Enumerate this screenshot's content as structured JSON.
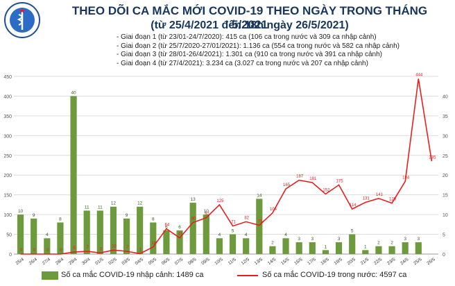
{
  "header": {
    "logo_text": "BỘ Y TẾ",
    "title": "THEO DÕI CA MẮC MỚI COVID-19 THEO NGÀY TRONG THÁNG 5/2021",
    "subtitle": "(từ 25/4/2021 đến 18h ngày 26/5/2021)",
    "phases": [
      "Giai đoạn 1 (từ 23/01-24/7/2020): 415 ca (106 ca trong nước và 309 ca nhập cảnh)",
      "Giai đoạn 2 (từ 25/7/2020-27/01/2021): 1.136 ca (554 ca trong nước và 582 ca nhập cảnh)",
      "Giai đoạn 3 (từ 28/01-26/4/2021): 1.301 ca (910 ca trong nước và 391 ca nhập cảnh)",
      "Giai đoạn 4 (từ 27/4/2021): 3.234 ca (3.027 ca trong nước và 207 ca nhập cảnh)"
    ]
  },
  "chart_data": {
    "type": "bar",
    "categories": [
      "25/4",
      "26/4",
      "27/4",
      "28/4",
      "29/4",
      "30/4",
      "01/5",
      "02/5",
      "03/5",
      "04/5",
      "05/5",
      "06/5",
      "07/5",
      "08/5",
      "09/5",
      "10/5",
      "11/5",
      "12/5",
      "13/5",
      "14/5",
      "15/5",
      "16/5",
      "17/5",
      "18/5",
      "19/5",
      "20/5",
      "21/5",
      "22/5",
      "23/5",
      "24/5",
      "25/5",
      "26/5"
    ],
    "left_axis": {
      "ylim": [
        0,
        450
      ],
      "ticks": [
        0,
        50,
        100,
        150,
        200,
        250,
        300,
        350,
        400,
        450
      ]
    },
    "right_axis": {
      "ylim": [
        0,
        45
      ],
      "ticks": [
        0,
        5,
        10,
        15,
        20,
        25,
        30,
        35,
        40
      ]
    },
    "bar_series": {
      "name": "Số ca mắc COVID-19 nhập cảnh: 1489 ca",
      "axis": "right",
      "color": "#6c9a3c",
      "values": [
        10,
        9,
        4,
        8,
        40,
        11,
        11,
        12,
        9,
        12,
        8,
        6,
        6,
        13,
        10,
        4,
        5,
        4,
        14,
        2,
        4,
        3,
        3,
        1,
        3,
        5,
        1,
        2,
        2,
        3,
        3,
        null
      ]
    },
    "line_series": {
      "name": "Số ca mắc COVID-19 trong nước: 4597 ca",
      "axis": "left",
      "color": "#e81e1e",
      "values": [
        0,
        0,
        0,
        0,
        5,
        7,
        3,
        10,
        7,
        1,
        18,
        64,
        41,
        80,
        92,
        125,
        71,
        82,
        73,
        104,
        165,
        187,
        181,
        152,
        175,
        114,
        131,
        141,
        129,
        184,
        444,
        235
      ]
    }
  }
}
